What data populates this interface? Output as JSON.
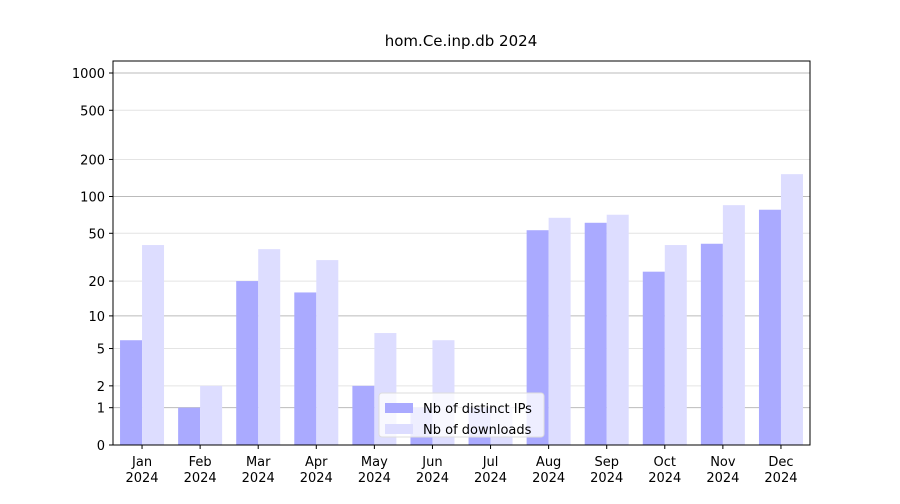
{
  "chart_data": {
    "type": "bar",
    "title": "hom.Ce.inp.db 2024",
    "categories": [
      "Jan 2024",
      "Feb 2024",
      "Mar 2024",
      "Apr 2024",
      "May 2024",
      "Jun 2024",
      "Jul 2024",
      "Aug 2024",
      "Sep 2024",
      "Oct 2024",
      "Nov 2024",
      "Dec 2024"
    ],
    "series": [
      {
        "name": "Nb of distinct IPs",
        "color": "#aaaaff",
        "values": [
          6,
          1,
          20,
          16,
          2,
          1,
          1,
          53,
          61,
          24,
          41,
          78
        ]
      },
      {
        "name": "Nb of downloads",
        "color": "#ddddff",
        "values": [
          40,
          2,
          37,
          30,
          7,
          6,
          1,
          67,
          71,
          40,
          85,
          152
        ]
      }
    ],
    "yscale": "symlog",
    "ylim": [
      0,
      1250
    ],
    "yticks": [
      0,
      1,
      2,
      5,
      10,
      20,
      50,
      100,
      200,
      500,
      1000
    ],
    "grid": true,
    "legend": "lower center"
  }
}
